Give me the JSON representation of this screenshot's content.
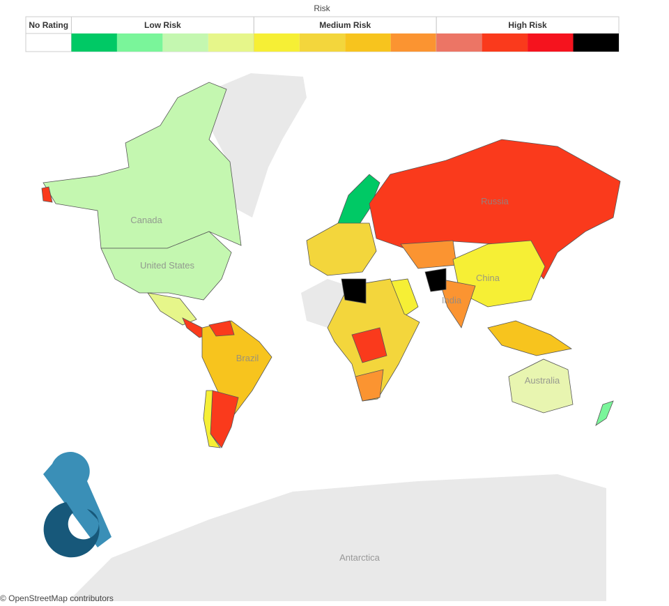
{
  "legend": {
    "title": "Risk",
    "groups": [
      {
        "label": "No Rating",
        "colors": [
          "#ffffff"
        ]
      },
      {
        "label": "Low Risk",
        "colors": [
          "#00c965",
          "#7af59a",
          "#c4f7b0",
          "#e6f68a"
        ]
      },
      {
        "label": "Medium Risk",
        "colors": [
          "#f6ef35",
          "#f3d63c",
          "#f7c41e",
          "#fb9431"
        ]
      },
      {
        "label": "High Risk",
        "colors": [
          "#ec7565",
          "#fa3a1c",
          "#f5131e",
          "#000000"
        ]
      }
    ]
  },
  "map": {
    "labels": [
      "Russia",
      "Canada",
      "United States",
      "China",
      "India",
      "Brazil",
      "Australia",
      "Antarctica"
    ],
    "attribution": "© OpenStreetMap contributors"
  }
}
